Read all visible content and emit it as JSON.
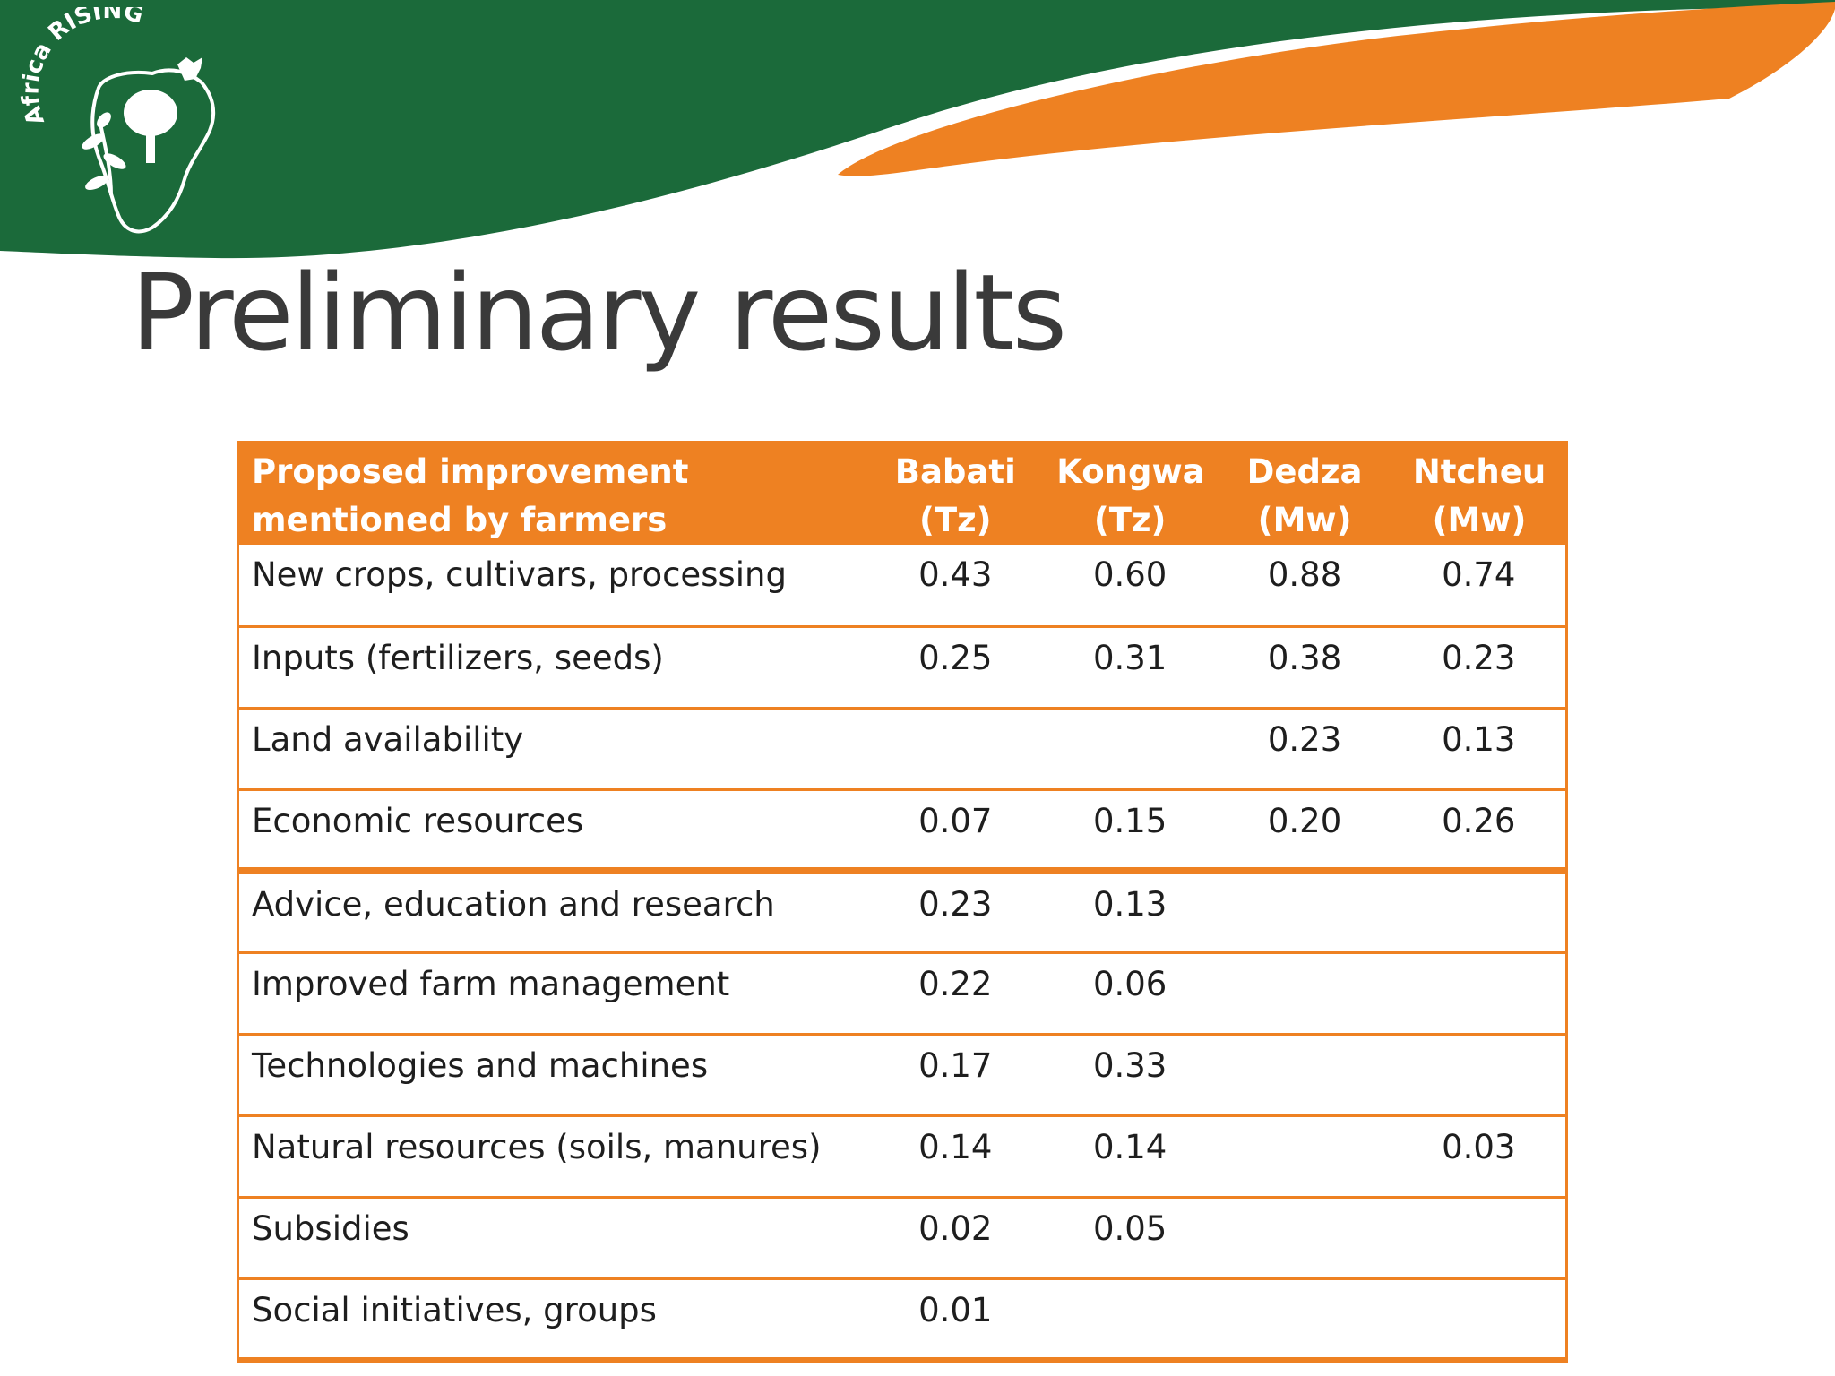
{
  "slide": {
    "title": "Preliminary results",
    "logo_text": "Africa RISING",
    "colors": {
      "green": "#1b6a3a",
      "orange": "#ee8122",
      "title_gray": "#3a3a3a"
    }
  },
  "table": {
    "header": {
      "label_line1": "Proposed improvement",
      "label_line2": "mentioned by farmers",
      "columns": [
        {
          "name": "Babati",
          "country": "(Tz)"
        },
        {
          "name": "Kongwa",
          "country": "(Tz)"
        },
        {
          "name": "Dedza",
          "country": "(Mw)"
        },
        {
          "name": "Ntcheu",
          "country": "(Mw)"
        }
      ]
    },
    "rows": [
      {
        "label": "New crops, cultivars, processing",
        "values": [
          "0.43",
          "0.60",
          "0.88",
          "0.74"
        ]
      },
      {
        "label": "Inputs (fertilizers, seeds)",
        "values": [
          "0.25",
          "0.31",
          "0.38",
          "0.23"
        ]
      },
      {
        "label": "Land availability",
        "values": [
          "",
          "",
          "0.23",
          "0.13"
        ]
      },
      {
        "label": "Economic resources",
        "values": [
          "0.07",
          "0.15",
          "0.20",
          "0.26"
        ]
      },
      {
        "label": "Advice, education and research",
        "values": [
          "0.23",
          "0.13",
          "",
          ""
        ]
      },
      {
        "label": "Improved farm management",
        "values": [
          "0.22",
          "0.06",
          "",
          ""
        ]
      },
      {
        "label": "Technologies and machines",
        "values": [
          "0.17",
          "0.33",
          "",
          ""
        ]
      },
      {
        "label": "Natural resources (soils, manures)",
        "values": [
          "0.14",
          "0.14",
          "",
          "0.03"
        ]
      },
      {
        "label": "Subsidies",
        "values": [
          "0.02",
          "0.05",
          "",
          ""
        ]
      },
      {
        "label": "Social initiatives, groups",
        "values": [
          "0.01",
          "",
          "",
          ""
        ]
      }
    ]
  }
}
